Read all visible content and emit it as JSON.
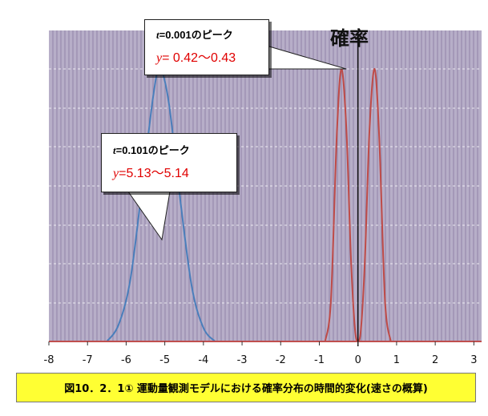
{
  "chart_data": {
    "type": "line",
    "title": "",
    "ylabel": "確率",
    "xlabel": "",
    "xlim": [
      -8,
      3.2
    ],
    "x_ticks": [
      "-8",
      "-7",
      "-6",
      "-5",
      "-4",
      "-3",
      "-2",
      "-1",
      "0",
      "1",
      "2",
      "3"
    ],
    "grid": true,
    "series": [
      {
        "color": "#4a7ebb",
        "x": [
          -6.5,
          -6.2,
          -5.9,
          -5.6,
          -5.3,
          -5.13,
          -4.9,
          -4.6,
          -4.3,
          -4.0,
          -3.7
        ],
        "y": [
          0.0,
          0.06,
          0.22,
          0.55,
          0.9,
          1.0,
          0.88,
          0.52,
          0.2,
          0.05,
          0.0
        ]
      },
      {
        "color": "#be4b48",
        "x": [
          -0.85,
          -0.7,
          -0.55,
          -0.43,
          -0.3,
          -0.18,
          -0.08,
          0.0,
          0.08,
          0.18,
          0.3,
          0.43,
          0.55,
          0.7,
          0.85
        ],
        "y": [
          0.0,
          0.15,
          0.75,
          1.0,
          0.78,
          0.3,
          0.05,
          0.0,
          0.05,
          0.3,
          0.78,
          1.0,
          0.75,
          0.15,
          0.0
        ]
      }
    ]
  },
  "annotations": [
    {
      "t_label": "t",
      "t_value": "=0.001のピーク",
      "y_label": "y",
      "y_value": "= 0.42～0.43"
    },
    {
      "t_label": "t",
      "t_value": "=0.101のピーク",
      "y_label": "y",
      "y_value": "=5.13～5.14"
    }
  ],
  "caption": "図10．2．1①  運動量観測モデルにおける確率分布の時間的変化(速さの概算)"
}
